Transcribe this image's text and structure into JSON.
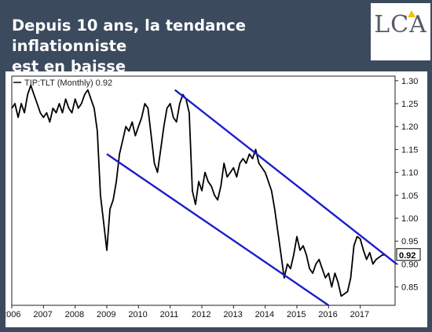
{
  "header": {
    "title_line1": "Depuis 10 ans, la tendance inflationniste",
    "title_line2": "est en baisse",
    "logo_text": "LCA"
  },
  "colors": {
    "background": "#3c4a5e",
    "series": "#000000",
    "channel": "#1c1ccc",
    "logo_accent": "#f2c300"
  },
  "chart_data": {
    "type": "line",
    "legend": "TIP:TLT (Monthly) 0.92",
    "last_value_label": "0.92",
    "x_ticks": [
      "2006",
      "2007",
      "2008",
      "2009",
      "2010",
      "2011",
      "2012",
      "2013",
      "2014",
      "2015",
      "2016",
      "2017"
    ],
    "y_ticks": [
      "1.30",
      "1.25",
      "1.20",
      "1.15",
      "1.10",
      "1.05",
      "1.00",
      "0.95",
      "0.90",
      "0.85"
    ],
    "xlim": [
      2006.0,
      2018.1
    ],
    "ylim": [
      0.81,
      1.31
    ],
    "grid": false,
    "y_axis_side": "right",
    "series": [
      {
        "x": [
          2006.0,
          2006.1,
          2006.2,
          2006.3,
          2006.4,
          2006.5,
          2006.6,
          2006.7,
          2006.8,
          2006.9,
          2007.0,
          2007.1,
          2007.2,
          2007.3,
          2007.4,
          2007.5,
          2007.6,
          2007.7,
          2007.8,
          2007.9,
          2008.0,
          2008.1,
          2008.2,
          2008.3,
          2008.4,
          2008.5,
          2008.6,
          2008.7,
          2008.8,
          2008.9,
          2009.0,
          2009.1,
          2009.2,
          2009.3,
          2009.4,
          2009.5,
          2009.6,
          2009.7,
          2009.8,
          2009.9,
          2010.0,
          2010.1,
          2010.2,
          2010.3,
          2010.4,
          2010.5,
          2010.6,
          2010.7,
          2010.8,
          2010.9,
          2011.0,
          2011.1,
          2011.2,
          2011.3,
          2011.4,
          2011.5,
          2011.6,
          2011.7,
          2011.8,
          2011.9,
          2012.0,
          2012.1,
          2012.2,
          2012.3,
          2012.4,
          2012.5,
          2012.6,
          2012.7,
          2012.8,
          2012.9,
          2013.0,
          2013.1,
          2013.2,
          2013.3,
          2013.4,
          2013.5,
          2013.6,
          2013.7,
          2013.8,
          2013.9,
          2014.0,
          2014.1,
          2014.2,
          2014.3,
          2014.4,
          2014.5,
          2014.6,
          2014.7,
          2014.8,
          2014.9,
          2015.0,
          2015.1,
          2015.2,
          2015.3,
          2015.4,
          2015.5,
          2015.6,
          2015.7,
          2015.8,
          2015.9,
          2016.0,
          2016.1,
          2016.2,
          2016.3,
          2016.4,
          2016.5,
          2016.6,
          2016.7,
          2016.8,
          2016.9,
          2017.0,
          2017.1,
          2017.2,
          2017.3,
          2017.4,
          2017.5,
          2017.6,
          2017.7,
          2017.8
        ],
        "values": [
          1.24,
          1.25,
          1.22,
          1.25,
          1.23,
          1.27,
          1.29,
          1.27,
          1.25,
          1.23,
          1.22,
          1.23,
          1.21,
          1.24,
          1.23,
          1.25,
          1.23,
          1.26,
          1.24,
          1.23,
          1.26,
          1.24,
          1.25,
          1.27,
          1.28,
          1.26,
          1.24,
          1.19,
          1.05,
          0.99,
          0.93,
          1.02,
          1.04,
          1.08,
          1.14,
          1.17,
          1.2,
          1.19,
          1.21,
          1.18,
          1.2,
          1.22,
          1.25,
          1.24,
          1.18,
          1.12,
          1.1,
          1.15,
          1.2,
          1.24,
          1.25,
          1.22,
          1.21,
          1.25,
          1.27,
          1.26,
          1.23,
          1.06,
          1.03,
          1.08,
          1.06,
          1.1,
          1.08,
          1.07,
          1.05,
          1.04,
          1.07,
          1.12,
          1.09,
          1.1,
          1.11,
          1.09,
          1.12,
          1.13,
          1.12,
          1.14,
          1.13,
          1.15,
          1.12,
          1.11,
          1.1,
          1.08,
          1.06,
          1.02,
          0.97,
          0.92,
          0.87,
          0.9,
          0.89,
          0.92,
          0.96,
          0.93,
          0.94,
          0.92,
          0.89,
          0.88,
          0.9,
          0.91,
          0.89,
          0.87,
          0.88,
          0.85,
          0.88,
          0.86,
          0.83,
          0.835,
          0.84,
          0.87,
          0.94,
          0.96,
          0.955,
          0.93,
          0.91,
          0.925,
          0.9,
          0.91,
          0.915,
          0.92,
          0.92
        ]
      }
    ],
    "channel_lines": [
      {
        "x": [
          2011.15,
          2018.15
        ],
        "y": [
          1.28,
          0.9
        ]
      },
      {
        "x": [
          2009.0,
          2016.0
        ],
        "y": [
          1.14,
          0.81
        ]
      }
    ]
  }
}
